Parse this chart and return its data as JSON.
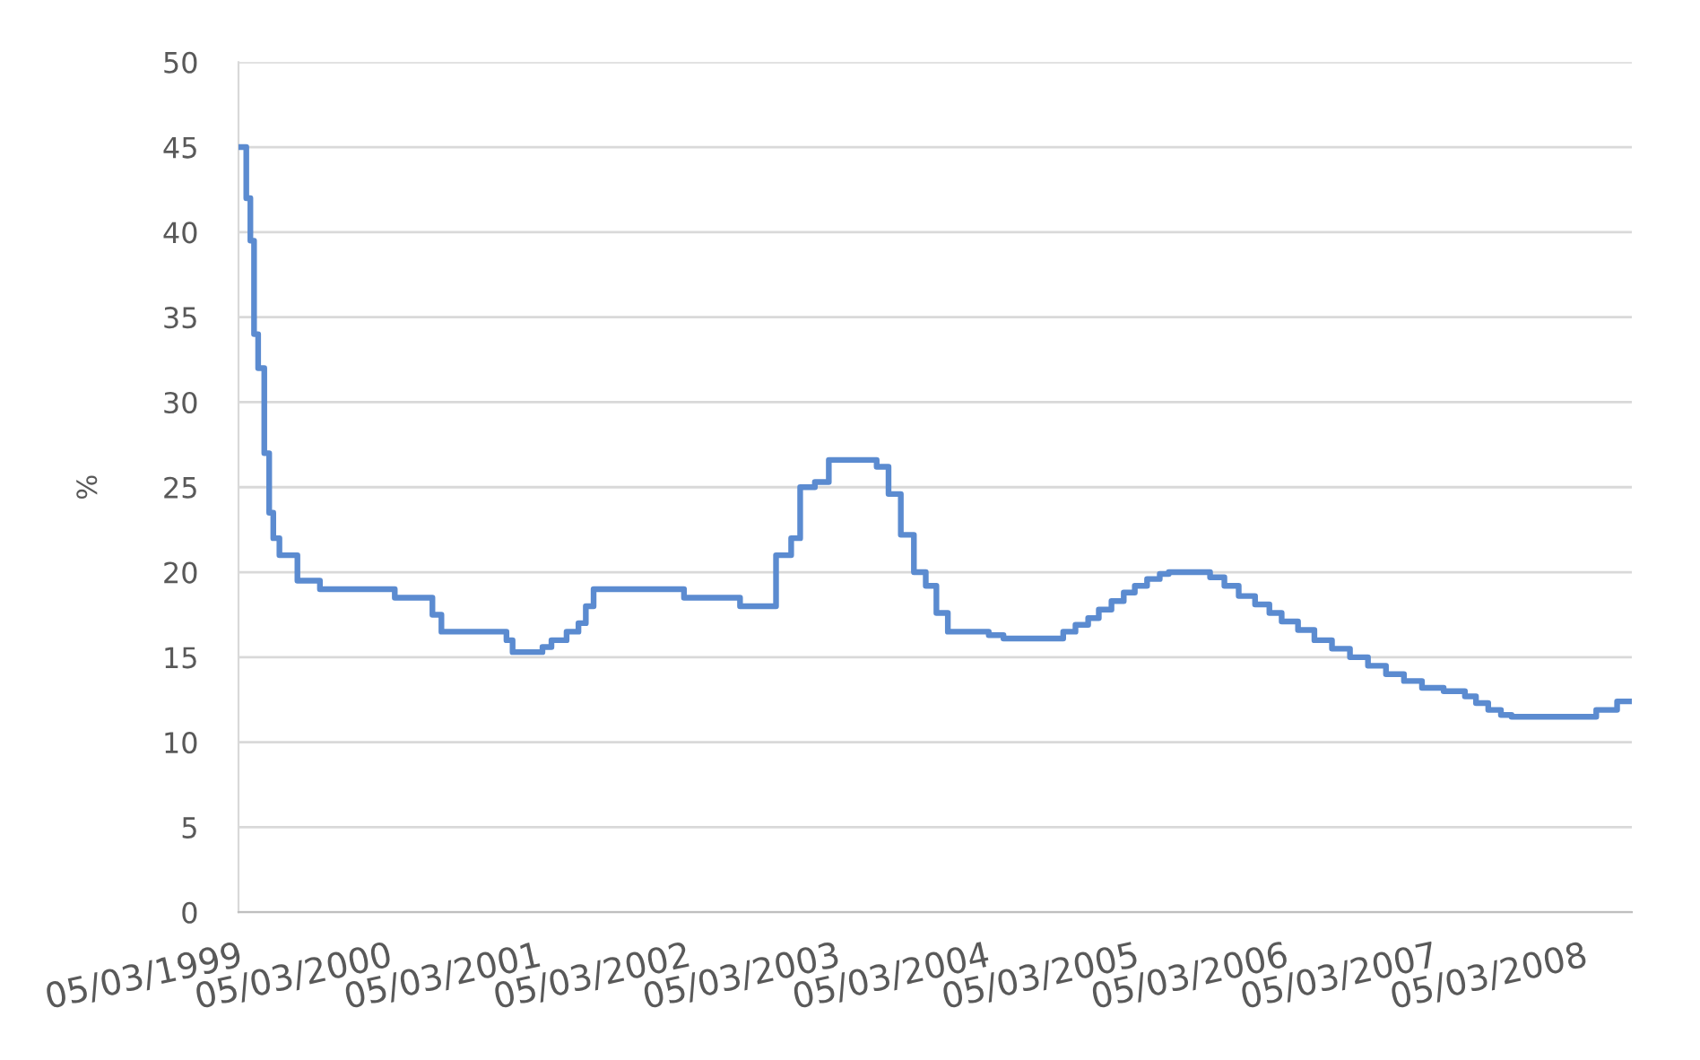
{
  "chart_data": {
    "type": "step",
    "ylabel": "%",
    "color": "#5b8bd0",
    "line_style": "solid",
    "grid": "y",
    "x": [
      "1999-03-05",
      "1999-03-24",
      "1999-04-03",
      "1999-04-12",
      "1999-04-22",
      "1999-05-07",
      "1999-05-19",
      "1999-05-29",
      "1999-06-13",
      "1999-07-27",
      "1999-09-20",
      "2000-03-21",
      "2000-06-21",
      "2000-07-13",
      "2000-12-19",
      "2001-01-03",
      "2001-03-17",
      "2001-04-08",
      "2001-05-15",
      "2001-06-13",
      "2001-07-01",
      "2001-07-20",
      "2002-02-26",
      "2002-07-13",
      "2002-10-09",
      "2002-11-15",
      "2002-12-07",
      "2003-01-12",
      "2003-02-15",
      "2003-06-12",
      "2003-07-11",
      "2003-08-10",
      "2003-09-11",
      "2003-10-10",
      "2003-11-05",
      "2003-12-03",
      "2004-03-12",
      "2004-04-17",
      "2004-09-10",
      "2004-10-10",
      "2004-11-10",
      "2004-12-06",
      "2005-01-06",
      "2005-02-05",
      "2005-03-04",
      "2005-04-03",
      "2005-05-04",
      "2005-05-26",
      "2005-09-04",
      "2005-10-09",
      "2005-11-13",
      "2005-12-23",
      "2006-01-27",
      "2006-02-26",
      "2006-04-07",
      "2006-05-17",
      "2006-06-29",
      "2006-08-12",
      "2006-09-25",
      "2006-11-08",
      "2006-12-22",
      "2007-02-04",
      "2007-03-29",
      "2007-05-20",
      "2007-06-16",
      "2007-07-16",
      "2007-08-16",
      "2007-09-11",
      "2008-04-05",
      "2008-05-26",
      "2008-07-01"
    ],
    "values": [
      45,
      42,
      39.5,
      34,
      32,
      27,
      23.5,
      22,
      21,
      19.5,
      19,
      18.5,
      17.5,
      16.5,
      16,
      15.3,
      15.6,
      16,
      16.5,
      17,
      18,
      19,
      18.5,
      18,
      21,
      22,
      25,
      25.3,
      26.6,
      26.2,
      24.6,
      22.2,
      20,
      19.2,
      17.6,
      16.5,
      16.3,
      16.1,
      16.5,
      16.9,
      17.3,
      17.8,
      18.3,
      18.8,
      19.2,
      19.6,
      19.9,
      20,
      19.7,
      19.2,
      18.6,
      18.1,
      17.6,
      17.1,
      16.6,
      16,
      15.5,
      15,
      14.5,
      14,
      13.6,
      13.2,
      13,
      12.7,
      12.3,
      11.9,
      11.6,
      11.5,
      11.9,
      12.4,
      12.4
    ],
    "xlim": [
      "1999-03-05",
      "2008-07-01"
    ],
    "xticks": [
      {
        "value": "1999-03-05",
        "label": "05/03/1999"
      },
      {
        "value": "2000-03-05",
        "label": "05/03/2000"
      },
      {
        "value": "2001-03-05",
        "label": "05/03/2001"
      },
      {
        "value": "2002-03-05",
        "label": "05/03/2002"
      },
      {
        "value": "2003-03-05",
        "label": "05/03/2003"
      },
      {
        "value": "2004-03-05",
        "label": "05/03/2004"
      },
      {
        "value": "2005-03-05",
        "label": "05/03/2005"
      },
      {
        "value": "2006-03-05",
        "label": "05/03/2006"
      },
      {
        "value": "2007-03-05",
        "label": "05/03/2007"
      },
      {
        "value": "2008-03-05",
        "label": "05/03/2008"
      }
    ],
    "ylim": [
      0,
      50
    ],
    "yticks": [
      0,
      5,
      10,
      15,
      20,
      25,
      30,
      35,
      40,
      45,
      50
    ]
  }
}
